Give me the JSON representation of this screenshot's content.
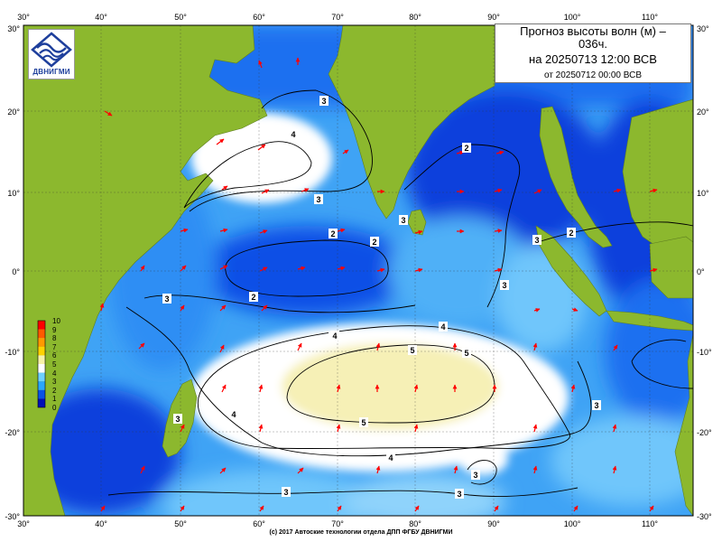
{
  "title": {
    "line1": "Прогноз высоты волн (м) –",
    "line2": "036ч.",
    "line3": "на 20250713 12:00 ВСВ",
    "line4": "от 20250712 00:00 ВСВ"
  },
  "logo": {
    "text": "ДВНИГМИ",
    "icon": "wave-emblem-icon"
  },
  "footer": {
    "credit": "(c) 2017 Автоские технологии отдела ДПП ФГБУ ДВНИГМИ"
  },
  "axes": {
    "lon_ticks": [
      "30°",
      "40°",
      "50°",
      "60°",
      "70°",
      "80°",
      "90°",
      "100°",
      "110°"
    ],
    "lat_left_ticks": [
      "30°",
      "20°",
      "10°",
      "0°",
      "-10°",
      "-20°",
      "-30°"
    ],
    "lat_right_ticks": [
      "30°",
      "20°",
      "10°",
      "0°",
      "-10°",
      "-20°",
      "-30°"
    ]
  },
  "legend": {
    "labels": [
      "10",
      "9",
      "8",
      "7",
      "6",
      "5",
      "4",
      "3",
      "2",
      "1",
      "0"
    ],
    "colors": [
      "#ff0000",
      "#ff5a00",
      "#ff9a00",
      "#ffd200",
      "#f7f2a8",
      "#ffffff",
      "#6fd0ff",
      "#2aa6ff",
      "#0a52e6",
      "#0010b8"
    ]
  },
  "contour_labels": [
    "3",
    "4",
    "2",
    "3",
    "3",
    "2",
    "2",
    "3",
    "4",
    "5",
    "5",
    "5",
    "4",
    "4",
    "4",
    "4",
    "3",
    "3",
    "3",
    "3",
    "2",
    "3",
    "2",
    "3",
    "3"
  ],
  "colors": {
    "land": "#8cb82e",
    "ocean_low": "#0a36d6",
    "ocean_mid": "#3fa3f5",
    "ocean_calm": "#8fd3fb",
    "high": "#ffffff",
    "highest": "#f6f0b6",
    "arrow": "#ff0000"
  }
}
